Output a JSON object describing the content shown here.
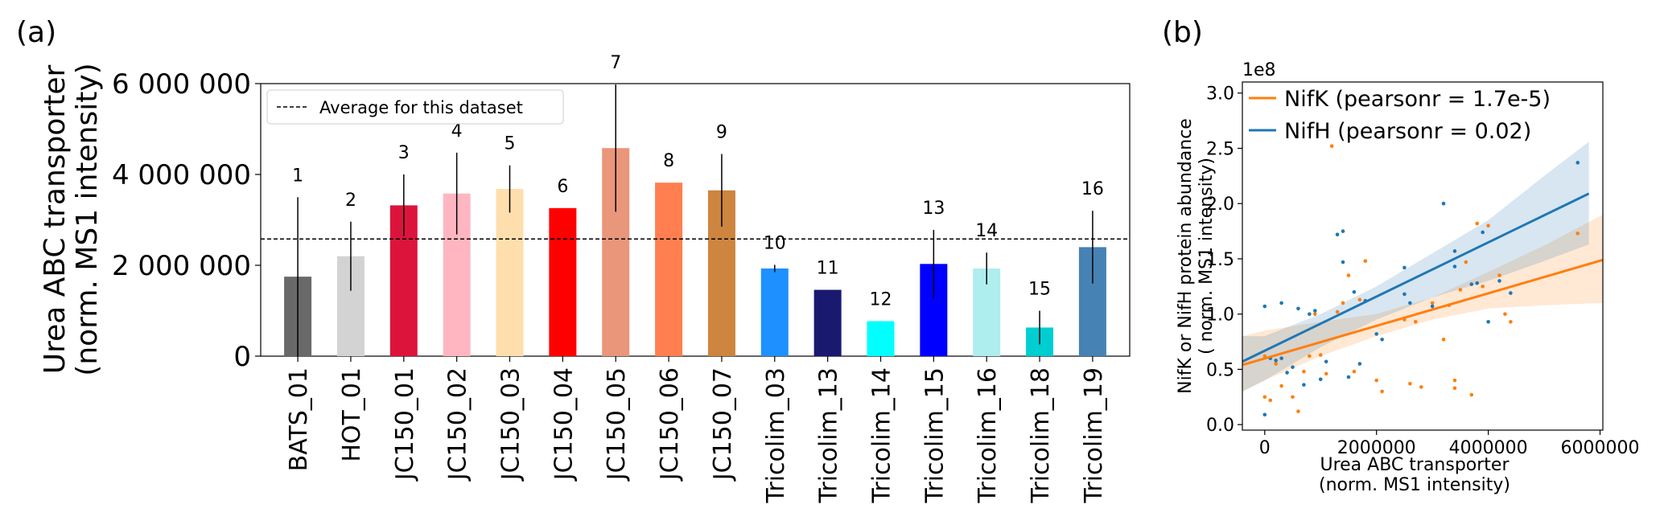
{
  "panel_labels": {
    "a": "(a)",
    "b": "(b)"
  },
  "chart_data": [
    {
      "type": "bar",
      "panel": "(a)",
      "ylabel_line1": "Urea ABC transporter",
      "ylabel_line2": "(norm. MS1 intensity)",
      "ylim": [
        0,
        6000000
      ],
      "yticks": [
        0,
        2000000,
        4000000,
        6000000
      ],
      "ytick_labels": [
        "0",
        "2 000 000",
        "4 000 000",
        "6 000 000"
      ],
      "categories": [
        "BATS_01",
        "HOT_01",
        "JC150_01",
        "JC150_02",
        "JC150_03",
        "JC150_04",
        "JC150_05",
        "JC150_06",
        "JC150_07",
        "Tricolim_03",
        "Tricolim_13",
        "Tricolim_14",
        "Tricolim_15",
        "Tricolim_16",
        "Tricolim_18",
        "Tricolim_19"
      ],
      "bar_labels": [
        "1",
        "2",
        "3",
        "4",
        "5",
        "6",
        "7",
        "8",
        "9",
        "10",
        "11",
        "12",
        "13",
        "14",
        "15",
        "16"
      ],
      "values": [
        1750000,
        2200000,
        3320000,
        3580000,
        3680000,
        3260000,
        4580000,
        3820000,
        3650000,
        1930000,
        1460000,
        770000,
        2030000,
        1930000,
        630000,
        2400000
      ],
      "error": [
        1750000,
        760000,
        680000,
        900000,
        520000,
        0,
        1400000,
        0,
        800000,
        80000,
        0,
        0,
        750000,
        350000,
        370000,
        800000
      ],
      "colors": [
        "#696969",
        "#d3d3d3",
        "#dc143c",
        "#ffb6c1",
        "#ffdead",
        "#ff0000",
        "#e9967a",
        "#ff7f50",
        "#cd853f",
        "#1e90ff",
        "#191970",
        "#00ffff",
        "#0000ff",
        "#afeeee",
        "#00ced1",
        "#4682b4"
      ],
      "average_line": {
        "value": 2580000,
        "label": "Average for this dataset",
        "color": "#000000"
      },
      "legend_position": "top-left",
      "grid": false
    },
    {
      "type": "scatter",
      "panel": "(b)",
      "xlabel_line1": "Urea ABC transporter",
      "xlabel_line2": "(norm. MS1 intensity)",
      "ylabel_line1": "NifK or NifH protein abundance",
      "ylabel_line2": "( norm. MS1 intensity)",
      "y_offset_label": "1e8",
      "xlim": [
        -400000,
        6050000
      ],
      "ylim": [
        -0.05,
        3.1
      ],
      "xticks": [
        0,
        2000000,
        4000000,
        6000000
      ],
      "xtick_labels": [
        "0",
        "2000000",
        "4000000",
        "6000000"
      ],
      "yticks": [
        0.0,
        0.5,
        1.0,
        1.5,
        2.0,
        2.5,
        3.0
      ],
      "ytick_labels": [
        "0.0",
        "0.5",
        "1.0",
        "1.5",
        "2.0",
        "2.5",
        "3.0"
      ],
      "legend_position": "top-left",
      "grid": false,
      "series": [
        {
          "name": "NifK (pearsonr = 1.7e-5)",
          "color": "#ff7f0e",
          "fit": {
            "x": [
              -400000,
              6050000
            ],
            "y": [
              0.54,
              1.49
            ]
          },
          "band": {
            "x": [
              -400000,
              0,
              1000000,
              2000000,
              3000000,
              4000000,
              5000000,
              6050000
            ],
            "lower": [
              0.3,
              0.4,
              0.62,
              0.8,
              0.95,
              1.05,
              1.08,
              1.1
            ],
            "upper": [
              0.8,
              0.85,
              0.93,
              1.0,
              1.15,
              1.38,
              1.62,
              1.9
            ]
          },
          "points": [
            [
              0,
              0.62
            ],
            [
              0,
              0.25
            ],
            [
              100000,
              0.22
            ],
            [
              200000,
              0.55
            ],
            [
              300000,
              0.35
            ],
            [
              500000,
              0.25
            ],
            [
              600000,
              0.12
            ],
            [
              700000,
              0.48
            ],
            [
              800000,
              0.62
            ],
            [
              900000,
              1.0
            ],
            [
              1000000,
              0.63
            ],
            [
              1100000,
              0.46
            ],
            [
              1200000,
              2.52
            ],
            [
              1300000,
              1.02
            ],
            [
              1400000,
              1.1
            ],
            [
              1500000,
              1.35
            ],
            [
              1600000,
              0.48
            ],
            [
              1700000,
              1.13
            ],
            [
              1800000,
              1.48
            ],
            [
              2000000,
              0.4
            ],
            [
              2100000,
              0.3
            ],
            [
              2500000,
              0.95
            ],
            [
              2600000,
              0.37
            ],
            [
              2700000,
              0.93
            ],
            [
              2800000,
              0.34
            ],
            [
              3000000,
              1.1
            ],
            [
              3200000,
              0.77
            ],
            [
              3300000,
              1.08
            ],
            [
              3400000,
              0.33
            ],
            [
              3400000,
              0.4
            ],
            [
              3500000,
              1.22
            ],
            [
              3600000,
              1.47
            ],
            [
              3700000,
              0.27
            ],
            [
              3800000,
              1.82
            ],
            [
              3900000,
              1.25
            ],
            [
              4000000,
              1.8
            ],
            [
              4200000,
              1.35
            ],
            [
              4300000,
              1.0
            ],
            [
              4400000,
              0.93
            ],
            [
              5600000,
              1.73
            ]
          ]
        },
        {
          "name": "NifH (pearsonr = 0.02)",
          "color": "#1f77b4",
          "fit": {
            "x": [
              -400000,
              5800000
            ],
            "y": [
              0.57,
              2.09
            ]
          },
          "band": {
            "x": [
              -400000,
              0,
              1000000,
              2000000,
              3000000,
              4000000,
              5000000,
              5800000
            ],
            "lower": [
              0.3,
              0.4,
              0.7,
              0.95,
              1.15,
              1.3,
              1.48,
              1.63
            ],
            "upper": [
              0.8,
              0.8,
              1.0,
              1.25,
              1.55,
              1.85,
              2.25,
              2.56
            ]
          },
          "points": [
            [
              0,
              1.07
            ],
            [
              0,
              0.09
            ],
            [
              100000,
              0.6
            ],
            [
              200000,
              0.58
            ],
            [
              300000,
              1.1
            ],
            [
              300000,
              0.6
            ],
            [
              400000,
              0.47
            ],
            [
              500000,
              0.52
            ],
            [
              600000,
              1.05
            ],
            [
              700000,
              0.36
            ],
            [
              800000,
              1.0
            ],
            [
              900000,
              1.03
            ],
            [
              1000000,
              0.41
            ],
            [
              1100000,
              0.57
            ],
            [
              1300000,
              1.72
            ],
            [
              1400000,
              1.75
            ],
            [
              1400000,
              1.47
            ],
            [
              1500000,
              0.43
            ],
            [
              1600000,
              1.2
            ],
            [
              1700000,
              0.55
            ],
            [
              1800000,
              1.12
            ],
            [
              2000000,
              0.82
            ],
            [
              2100000,
              0.77
            ],
            [
              2500000,
              1.42
            ],
            [
              2500000,
              1.18
            ],
            [
              2600000,
              1.1
            ],
            [
              3000000,
              1.07
            ],
            [
              3200000,
              2.0
            ],
            [
              3400000,
              1.43
            ],
            [
              3400000,
              1.57
            ],
            [
              3700000,
              1.27
            ],
            [
              3800000,
              1.28
            ],
            [
              3900000,
              1.74
            ],
            [
              4000000,
              0.93
            ],
            [
              4200000,
              1.3
            ],
            [
              4400000,
              1.19
            ],
            [
              5600000,
              2.37
            ]
          ]
        }
      ]
    }
  ]
}
